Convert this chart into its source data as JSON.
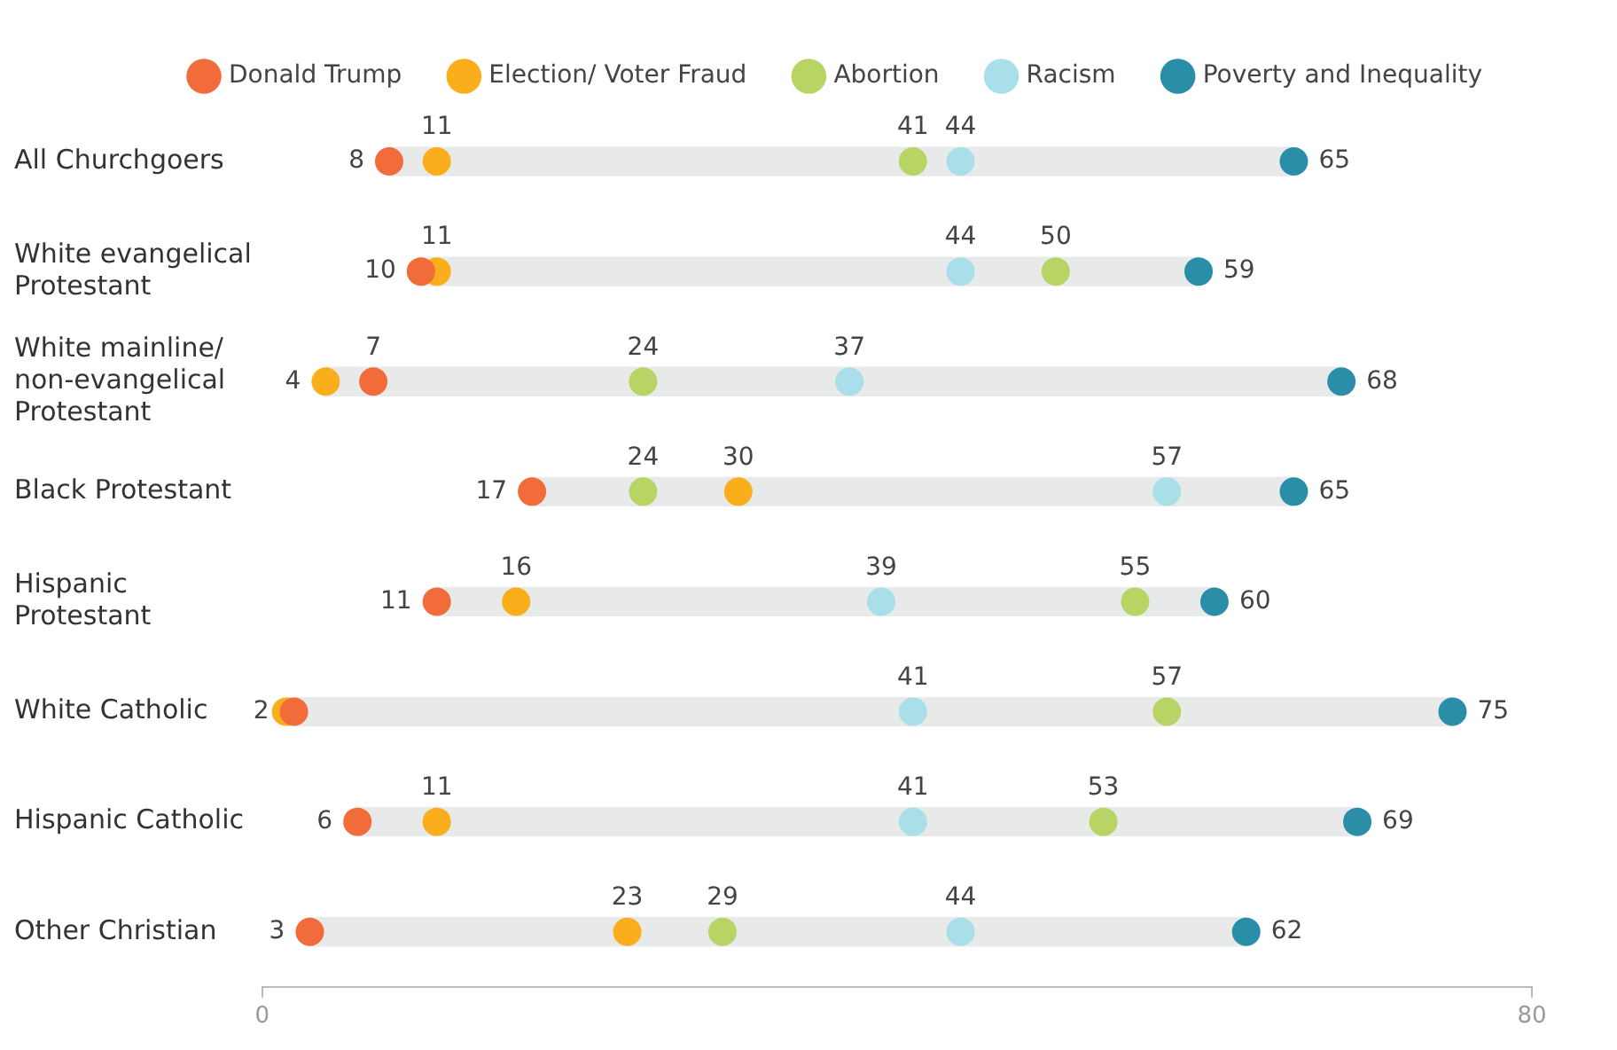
{
  "chart_data": {
    "type": "scatter",
    "orientation": "horizontal",
    "categories": [
      "All Churchgoers",
      "White evangelical Protestant",
      "White mainline/ non-evangelical Protestant",
      "Black Protestant",
      "Hispanic Protestant",
      "White Catholic",
      "Hispanic Catholic",
      "Other Christian"
    ],
    "series": [
      {
        "type": "bar",
        "color": "#e8e9e9",
        "base": [
          8,
          10,
          4,
          17,
          11,
          1.5,
          6,
          3
        ],
        "values": [
          57,
          49,
          64,
          48,
          49,
          73.5,
          63,
          59
        ]
      },
      {
        "name": "Donald Trump",
        "color": "#f26b3a",
        "values": [
          8,
          10,
          7,
          17,
          11,
          2,
          6,
          3
        ],
        "value_labels": [
          "8",
          "10",
          "7",
          "17",
          "11",
          "2",
          "6",
          "3"
        ]
      },
      {
        "name": "Election/ Voter Fraud",
        "color": "#fbae1c",
        "values": [
          11,
          11,
          4,
          30,
          16,
          1.5,
          11,
          23
        ],
        "value_labels": [
          "11",
          "11",
          "4",
          "30",
          "16",
          null,
          "11",
          "23"
        ]
      },
      {
        "name": "Abortion",
        "color": "#b8d465",
        "values": [
          41,
          50,
          24,
          24,
          55,
          57,
          53,
          29
        ],
        "value_labels": [
          "41",
          "50",
          "24",
          "24",
          "55",
          "57",
          "53",
          "29"
        ]
      },
      {
        "name": "Racism",
        "color": "#a9dfe8",
        "values": [
          44,
          44,
          37,
          57,
          39,
          41,
          41,
          44
        ],
        "value_labels": [
          "44",
          "44",
          "37",
          "57",
          "39",
          "41",
          "41",
          "44"
        ]
      },
      {
        "name": "Poverty and Inequality",
        "color": "#2a8ea8",
        "values": [
          65,
          59,
          68,
          65,
          60,
          75,
          69,
          62
        ],
        "value_labels": [
          "65",
          "59",
          "68",
          "65",
          "60",
          "75",
          "69",
          "62"
        ]
      }
    ],
    "xlim": [
      0,
      80
    ],
    "xticks": [
      0,
      80
    ],
    "grid": false,
    "legend": "top",
    "marker": "circle"
  }
}
